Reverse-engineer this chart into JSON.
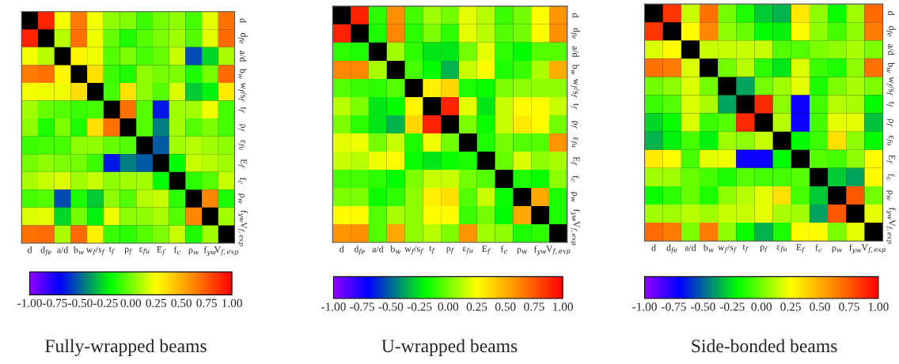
{
  "chart_data": [
    {
      "type": "heatmap",
      "title": "Fully-wrapped beams",
      "categories": [
        "d",
        "d$_{fe}$",
        "a/d",
        "b$_{w}$",
        "w$_{f}$/s$_{f}$",
        "t$_{f}$",
        "ρ$_{f}$",
        "ε$_{fu}$",
        "E$_{f}$",
        "f$_{c}$",
        "ρ$_{w}$",
        "f$_{yw}$",
        "V$_{f,exp}$"
      ],
      "y_categories": [
        "d",
        "d$_{fe}$",
        "a/d",
        "b$_{w}$",
        "w$_{f}$/s$_{f}$",
        "t$_{f}$",
        "ρ$_{f}$",
        "ε$_{fu}$",
        "E$_{f}$",
        "f$_{c}$",
        "ρ$_{w}$",
        "f$_{yw}$",
        "V$_{f,exp}$"
      ],
      "cells": [
        [
          null,
          0.9,
          0.23,
          0.65,
          0.23,
          0.05,
          0.03,
          -0.1,
          0.0,
          0.05,
          -0.08,
          0.2,
          0.68
        ],
        [
          0.9,
          null,
          0.12,
          0.68,
          0.22,
          -0.02,
          -0.15,
          -0.05,
          0.02,
          0.08,
          -0.05,
          0.2,
          0.7
        ],
        [
          0.23,
          0.12,
          null,
          0.28,
          0.22,
          -0.05,
          0.02,
          -0.08,
          -0.02,
          0.15,
          -0.55,
          -0.28,
          0.1
        ],
        [
          0.65,
          0.68,
          0.28,
          null,
          0.35,
          -0.1,
          -0.15,
          0.05,
          0.0,
          0.02,
          -0.15,
          0.0,
          0.7
        ],
        [
          0.23,
          0.22,
          0.22,
          0.35,
          null,
          -0.08,
          0.35,
          0.05,
          -0.05,
          0.18,
          -0.3,
          -0.22,
          0.32
        ],
        [
          0.08,
          -0.02,
          -0.05,
          -0.1,
          -0.08,
          null,
          0.68,
          -0.05,
          -0.65,
          0.08,
          0.08,
          0.22,
          -0.08
        ],
        [
          0.05,
          -0.15,
          0.02,
          -0.15,
          0.35,
          0.68,
          null,
          -0.05,
          -0.45,
          0.08,
          -0.05,
          0.02,
          -0.08
        ],
        [
          -0.1,
          -0.08,
          -0.08,
          0.05,
          0.05,
          -0.02,
          -0.05,
          null,
          -0.52,
          0.08,
          0.12,
          0.08,
          0.05
        ],
        [
          0.0,
          0.05,
          0.02,
          0.0,
          -0.1,
          -0.65,
          -0.45,
          -0.52,
          null,
          -0.2,
          0.15,
          0.12,
          0.08
        ],
        [
          0.1,
          0.15,
          0.18,
          0.08,
          0.15,
          0.05,
          0.08,
          0.08,
          -0.2,
          null,
          -0.12,
          -0.05,
          0.15
        ],
        [
          -0.08,
          -0.05,
          -0.55,
          -0.15,
          -0.3,
          0.05,
          -0.05,
          0.12,
          0.15,
          -0.12,
          null,
          0.62,
          -0.15
        ],
        [
          0.18,
          0.2,
          -0.28,
          0.0,
          -0.22,
          0.22,
          0.05,
          0.05,
          0.1,
          -0.05,
          0.62,
          null,
          0.08
        ],
        [
          0.68,
          0.7,
          0.1,
          0.7,
          0.3,
          -0.1,
          -0.12,
          -0.05,
          0.02,
          0.15,
          -0.15,
          0.08,
          null
        ]
      ],
      "clim": [
        -1,
        1
      ],
      "cticks": [
        {
          "value": -1,
          "label": "-1.00"
        },
        {
          "value": -0.75,
          "label": "-0.75"
        },
        {
          "value": -0.5,
          "label": "-0.50"
        },
        {
          "value": -0.25,
          "label": "-0.25"
        },
        {
          "value": 0,
          "label": "0.00"
        },
        {
          "value": 0.25,
          "label": "0.25"
        },
        {
          "value": 0.5,
          "label": "0.50"
        },
        {
          "value": 0.75,
          "label": "0.75"
        },
        {
          "value": 1,
          "label": "1.00"
        }
      ]
    },
    {
      "type": "heatmap",
      "title": "U-wrapped beams",
      "categories": [
        "d",
        "d$_{fe}$",
        "a/d",
        "b$_{w}$",
        "w$_{f}$/s$_{f}$",
        "t$_{f}$",
        "ρ$_{f}$",
        "ε$_{fu}$",
        "E$_{f}$",
        "f$_{c}$",
        "ρ$_{w}$",
        "f$_{yw}$",
        "V$_{f,exp}$"
      ],
      "y_categories": [
        "d",
        "d$_{fe}$",
        "a/d",
        "b$_{w}$",
        "w$_{f}$/s$_{f}$",
        "t$_{f}$",
        "ρ$_{f}$",
        "ε$_{fu}$",
        "E$_{f}$",
        "f$_{c}$",
        "ρ$_{w}$",
        "f$_{yw}$",
        "V$_{f,exp}$"
      ],
      "cells": [
        [
          null,
          0.9,
          -0.12,
          0.6,
          -0.08,
          0.08,
          0.0,
          0.2,
          0.12,
          -0.1,
          0.0,
          0.25,
          0.58
        ],
        [
          0.9,
          null,
          -0.15,
          0.62,
          -0.12,
          0.02,
          -0.12,
          0.2,
          0.12,
          -0.05,
          0.0,
          0.25,
          0.6
        ],
        [
          -0.12,
          -0.15,
          null,
          0.08,
          -0.12,
          -0.25,
          -0.25,
          0.0,
          0.2,
          -0.12,
          -0.2,
          -0.05,
          -0.05
        ],
        [
          0.62,
          0.62,
          0.1,
          null,
          -0.08,
          -0.2,
          -0.35,
          0.15,
          0.25,
          -0.15,
          -0.1,
          0.1,
          0.5
        ],
        [
          -0.05,
          -0.1,
          -0.12,
          -0.05,
          null,
          0.3,
          0.38,
          -0.15,
          -0.18,
          0.02,
          0.05,
          0.05,
          0.05
        ],
        [
          0.12,
          0.02,
          -0.25,
          -0.2,
          0.28,
          null,
          0.9,
          0.2,
          -0.25,
          0.15,
          0.25,
          0.25,
          0.15
        ],
        [
          0.02,
          -0.12,
          -0.25,
          -0.35,
          0.38,
          0.9,
          null,
          0.02,
          -0.18,
          0.15,
          0.32,
          0.25,
          0.0
        ],
        [
          0.2,
          0.22,
          0.0,
          0.15,
          -0.15,
          0.22,
          0.0,
          null,
          -0.15,
          0.0,
          -0.05,
          -0.05,
          0.58
        ],
        [
          0.15,
          0.12,
          0.22,
          0.25,
          -0.18,
          -0.25,
          -0.18,
          -0.15,
          null,
          -0.02,
          0.18,
          0.05,
          0.1
        ],
        [
          -0.08,
          -0.08,
          -0.12,
          -0.2,
          0.02,
          0.15,
          0.15,
          0.0,
          -0.05,
          null,
          -0.15,
          -0.18,
          0.05
        ],
        [
          0.02,
          0.02,
          -0.18,
          -0.12,
          0.05,
          0.3,
          0.35,
          -0.05,
          0.15,
          -0.18,
          null,
          0.52,
          -0.15
        ],
        [
          0.25,
          0.25,
          -0.05,
          0.1,
          0.05,
          0.25,
          0.25,
          -0.1,
          0.0,
          -0.2,
          0.52,
          null,
          -0.15
        ],
        [
          0.58,
          0.6,
          -0.05,
          0.52,
          0.05,
          0.12,
          0.02,
          0.58,
          0.08,
          0.05,
          -0.15,
          -0.12,
          null
        ]
      ],
      "clim": [
        -1,
        1
      ],
      "cticks": [
        {
          "value": -1,
          "label": "-1.00"
        },
        {
          "value": -0.75,
          "label": "-0.75"
        },
        {
          "value": -0.5,
          "label": "-0.50"
        },
        {
          "value": -0.25,
          "label": "-0.25"
        },
        {
          "value": 0,
          "label": "0.00"
        },
        {
          "value": 0.25,
          "label": "0.25"
        },
        {
          "value": 0.5,
          "label": "0.50"
        },
        {
          "value": 0.75,
          "label": "0.75"
        },
        {
          "value": 1,
          "label": "1.00"
        }
      ]
    },
    {
      "type": "heatmap",
      "title": "Side-bonded beams",
      "categories": [
        "d",
        "d$_{fe}$",
        "a/d",
        "b$_{w}$",
        "w$_{f}$/s$_{f}$",
        "t$_{f}$",
        "ρ$_{f}$",
        "ε$_{fu}$",
        "E$_{f}$",
        "f$_{c}$",
        "ρ$_{w}$",
        "f$_{yw}$",
        "V$_{f,exp}$"
      ],
      "y_categories": [
        "d",
        "d$_{fe}$",
        "a/d",
        "b$_{w}$",
        "w$_{f}$/s$_{f}$",
        "t$_{f}$",
        "ρ$_{f}$",
        "ε$_{fu}$",
        "E$_{f}$",
        "f$_{c}$",
        "ρ$_{w}$",
        "f$_{yw}$",
        "V$_{f,exp}$"
      ],
      "cells": [
        [
          null,
          0.85,
          0.15,
          0.68,
          0.0,
          -0.15,
          -0.3,
          -0.35,
          0.32,
          0.05,
          -0.18,
          0.08,
          0.7
        ],
        [
          0.85,
          null,
          0.25,
          0.62,
          0.05,
          -0.02,
          -0.2,
          -0.22,
          0.25,
          0.05,
          -0.08,
          0.05,
          0.65
        ],
        [
          0.18,
          0.25,
          null,
          0.15,
          0.15,
          0.15,
          0.15,
          -0.05,
          -0.05,
          0.02,
          0.05,
          0.1,
          0.02
        ],
        [
          0.68,
          0.65,
          0.18,
          null,
          0.0,
          0.12,
          -0.12,
          -0.25,
          0.18,
          -0.1,
          -0.15,
          0.05,
          0.68
        ],
        [
          0.0,
          0.05,
          0.18,
          0.0,
          null,
          -0.38,
          0.0,
          0.08,
          0.2,
          -0.15,
          0.02,
          0.1,
          0.02
        ],
        [
          -0.1,
          -0.05,
          0.18,
          0.1,
          -0.38,
          null,
          0.88,
          0.05,
          -0.72,
          -0.08,
          0.12,
          0.1,
          -0.2
        ],
        [
          -0.28,
          -0.18,
          0.18,
          -0.1,
          -0.05,
          0.88,
          null,
          0.12,
          -0.72,
          -0.08,
          0.2,
          0.2,
          -0.32
        ],
        [
          -0.35,
          -0.22,
          -0.08,
          -0.22,
          0.08,
          0.05,
          0.15,
          null,
          -0.2,
          -0.1,
          0.35,
          0.05,
          -0.2
        ],
        [
          0.32,
          0.25,
          -0.08,
          0.2,
          0.22,
          -0.72,
          -0.72,
          -0.2,
          null,
          -0.05,
          -0.08,
          0.05,
          0.25
        ],
        [
          0.08,
          0.08,
          -0.02,
          -0.08,
          -0.15,
          -0.05,
          -0.08,
          -0.08,
          -0.05,
          null,
          -0.3,
          -0.38,
          0.25
        ],
        [
          -0.18,
          -0.12,
          -0.02,
          -0.15,
          0.05,
          0.12,
          0.2,
          0.35,
          -0.08,
          -0.3,
          null,
          0.75,
          0.0
        ],
        [
          0.08,
          0.08,
          0.12,
          0.08,
          0.15,
          0.15,
          0.2,
          0.1,
          0.08,
          -0.38,
          0.75,
          null,
          0.2
        ],
        [
          0.7,
          0.65,
          0.02,
          0.65,
          0.05,
          -0.18,
          -0.35,
          -0.15,
          0.25,
          0.25,
          0.02,
          0.2,
          null
        ]
      ],
      "clim": [
        -1,
        1
      ],
      "cticks": [
        {
          "value": -1,
          "label": "-1.00"
        },
        {
          "value": -0.75,
          "label": "-0.75"
        },
        {
          "value": -0.5,
          "label": "-0.50"
        },
        {
          "value": -0.25,
          "label": "-0.25"
        },
        {
          "value": 0,
          "label": "0.00"
        },
        {
          "value": 0.25,
          "label": "0.25"
        },
        {
          "value": 0.5,
          "label": "0.50"
        },
        {
          "value": 0.75,
          "label": "0.75"
        },
        {
          "value": 1,
          "label": "1.00"
        }
      ]
    }
  ]
}
